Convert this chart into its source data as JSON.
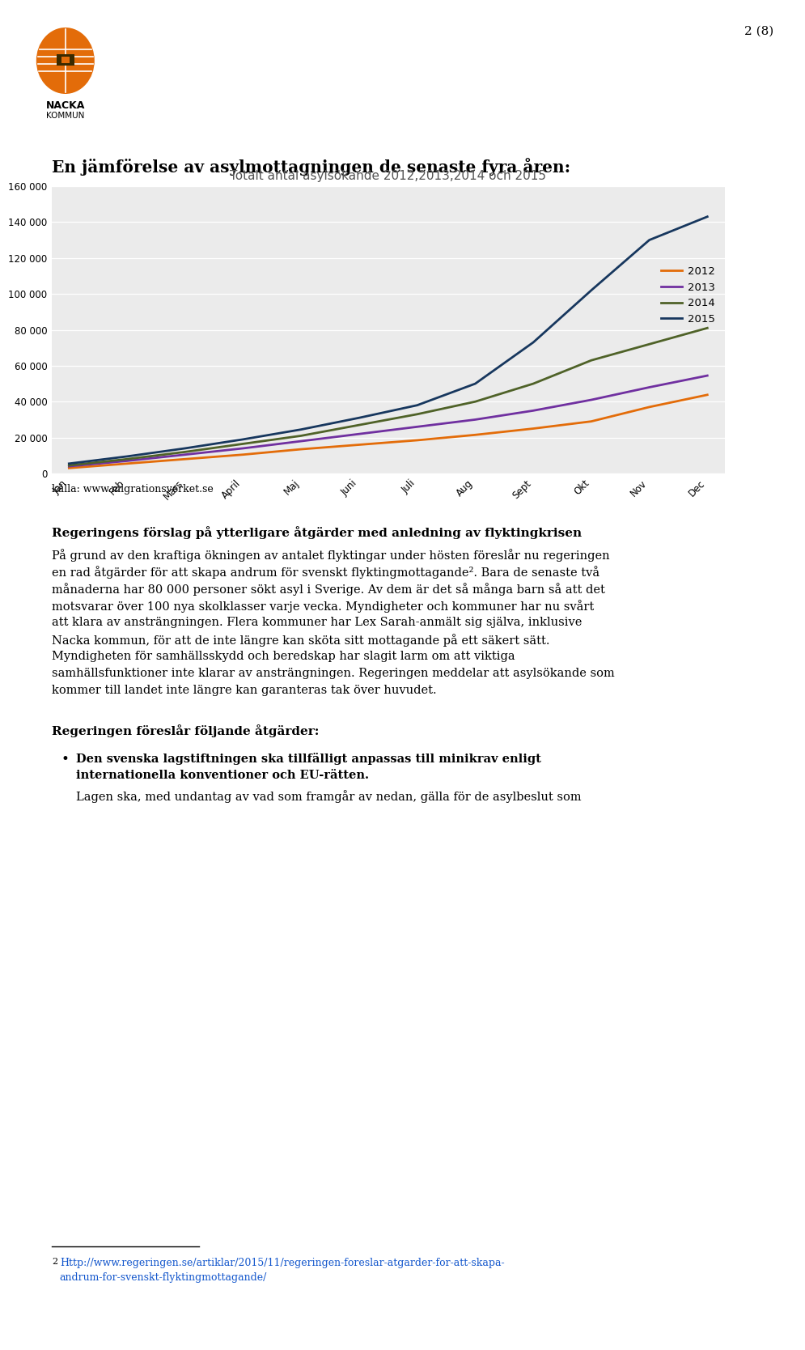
{
  "page_number": "2 (8)",
  "chart_title": "Totalt antal asylsökande 2012,2013,2014 och 2015",
  "heading": "En jämförelse av asylmottagningen de senaste fyra åren:",
  "source": "källa: www.migrationsverket.se",
  "months": [
    "Jan",
    "Feb",
    "Mars",
    "April",
    "Maj",
    "Juni",
    "Juli",
    "Aug",
    "Sept",
    "Okt",
    "Nov",
    "Dec"
  ],
  "series": {
    "2012": {
      "color": "#E36C09",
      "data": [
        3000,
        5500,
        8000,
        10500,
        13500,
        16000,
        18500,
        21500,
        25000,
        29000,
        37000,
        43800
      ]
    },
    "2013": {
      "color": "#7030A0",
      "data": [
        4000,
        7000,
        10500,
        14000,
        18000,
        22000,
        26000,
        30000,
        35000,
        41000,
        48000,
        54500
      ]
    },
    "2014": {
      "color": "#4F6228",
      "data": [
        4500,
        8000,
        12000,
        16500,
        21000,
        27000,
        33000,
        40000,
        50000,
        63000,
        72000,
        81000
      ]
    },
    "2015": {
      "color": "#17375E",
      "data": [
        5500,
        9500,
        14000,
        19000,
        24500,
        31000,
        38000,
        50000,
        73000,
        102000,
        130000,
        143000
      ]
    }
  },
  "ylim": [
    0,
    160000
  ],
  "yticks": [
    0,
    20000,
    40000,
    60000,
    80000,
    100000,
    120000,
    140000,
    160000
  ],
  "ytick_labels": [
    "0",
    "20 000",
    "40 000",
    "60 000",
    "80 000",
    "100 000",
    "120 000",
    "140 000",
    "160 000"
  ],
  "background_color": "#ffffff",
  "chart_bg_color": "#ebebeb",
  "grid_color": "#ffffff",
  "bold_heading": "Regeringens förslag på ytterligare åtgärder med anledning av flyktingkrisen",
  "para1_line1": "På grund av den kraftiga ökningen av antalet flyktingar under hösten föreslår nu regeringen",
  "para1_line2": "en rad åtgärder för att skapa andrum för svenskt flyktingmottagande². Bara de senaste två",
  "para1_line3": "månaderna har 80 000 personer sökt asyl i Sverige. Av dem är det så många barn så att det",
  "para1_line4": "motsvarar över 100 nya skolklasser varje vecka. Myndigheter och kommuner har nu svårt",
  "para1_line5": "att klara av ansträngningen. Flera kommuner har Lex Sarah-anmält sig själva, inklusive",
  "para1_line6": "Nacka kommun, för att de inte längre kan sköta sitt mottagande på ett säkert sätt.",
  "para1_line7": "Myndigheten för samhällsskydd och beredskap har slagit larm om att viktiga",
  "para1_line8": "samhällsfunktioner inte klarar av ansträngningen. Regeringen meddelar att asylsökande som",
  "para1_line9": "kommer till landet inte längre kan garanteras tak över huvudet.",
  "bold_heading2": "Regeringen föreslår följande åtgärder:",
  "bullet_bold_line1": "Den svenska lagstiftningen ska tillfälligt anpassas till minikrav enligt",
  "bullet_bold_line2": "internationella konventioner och EU-rätten.",
  "bullet_normal": "Lagen ska, med undantag av vad som framgår av nedan, gälla för de asylbeslut som",
  "footnote_num": "2",
  "footnote_url_line1": "Http://www.regeringen.se/artiklar/2015/11/regeringen-foreslar-atgarder-for-att-skapa-",
  "footnote_url_line2": "andrum-for-svenskt-flyktingmottagande/",
  "nacka_logo_color": "#E36C09",
  "logo_dark": "#3a2a00"
}
